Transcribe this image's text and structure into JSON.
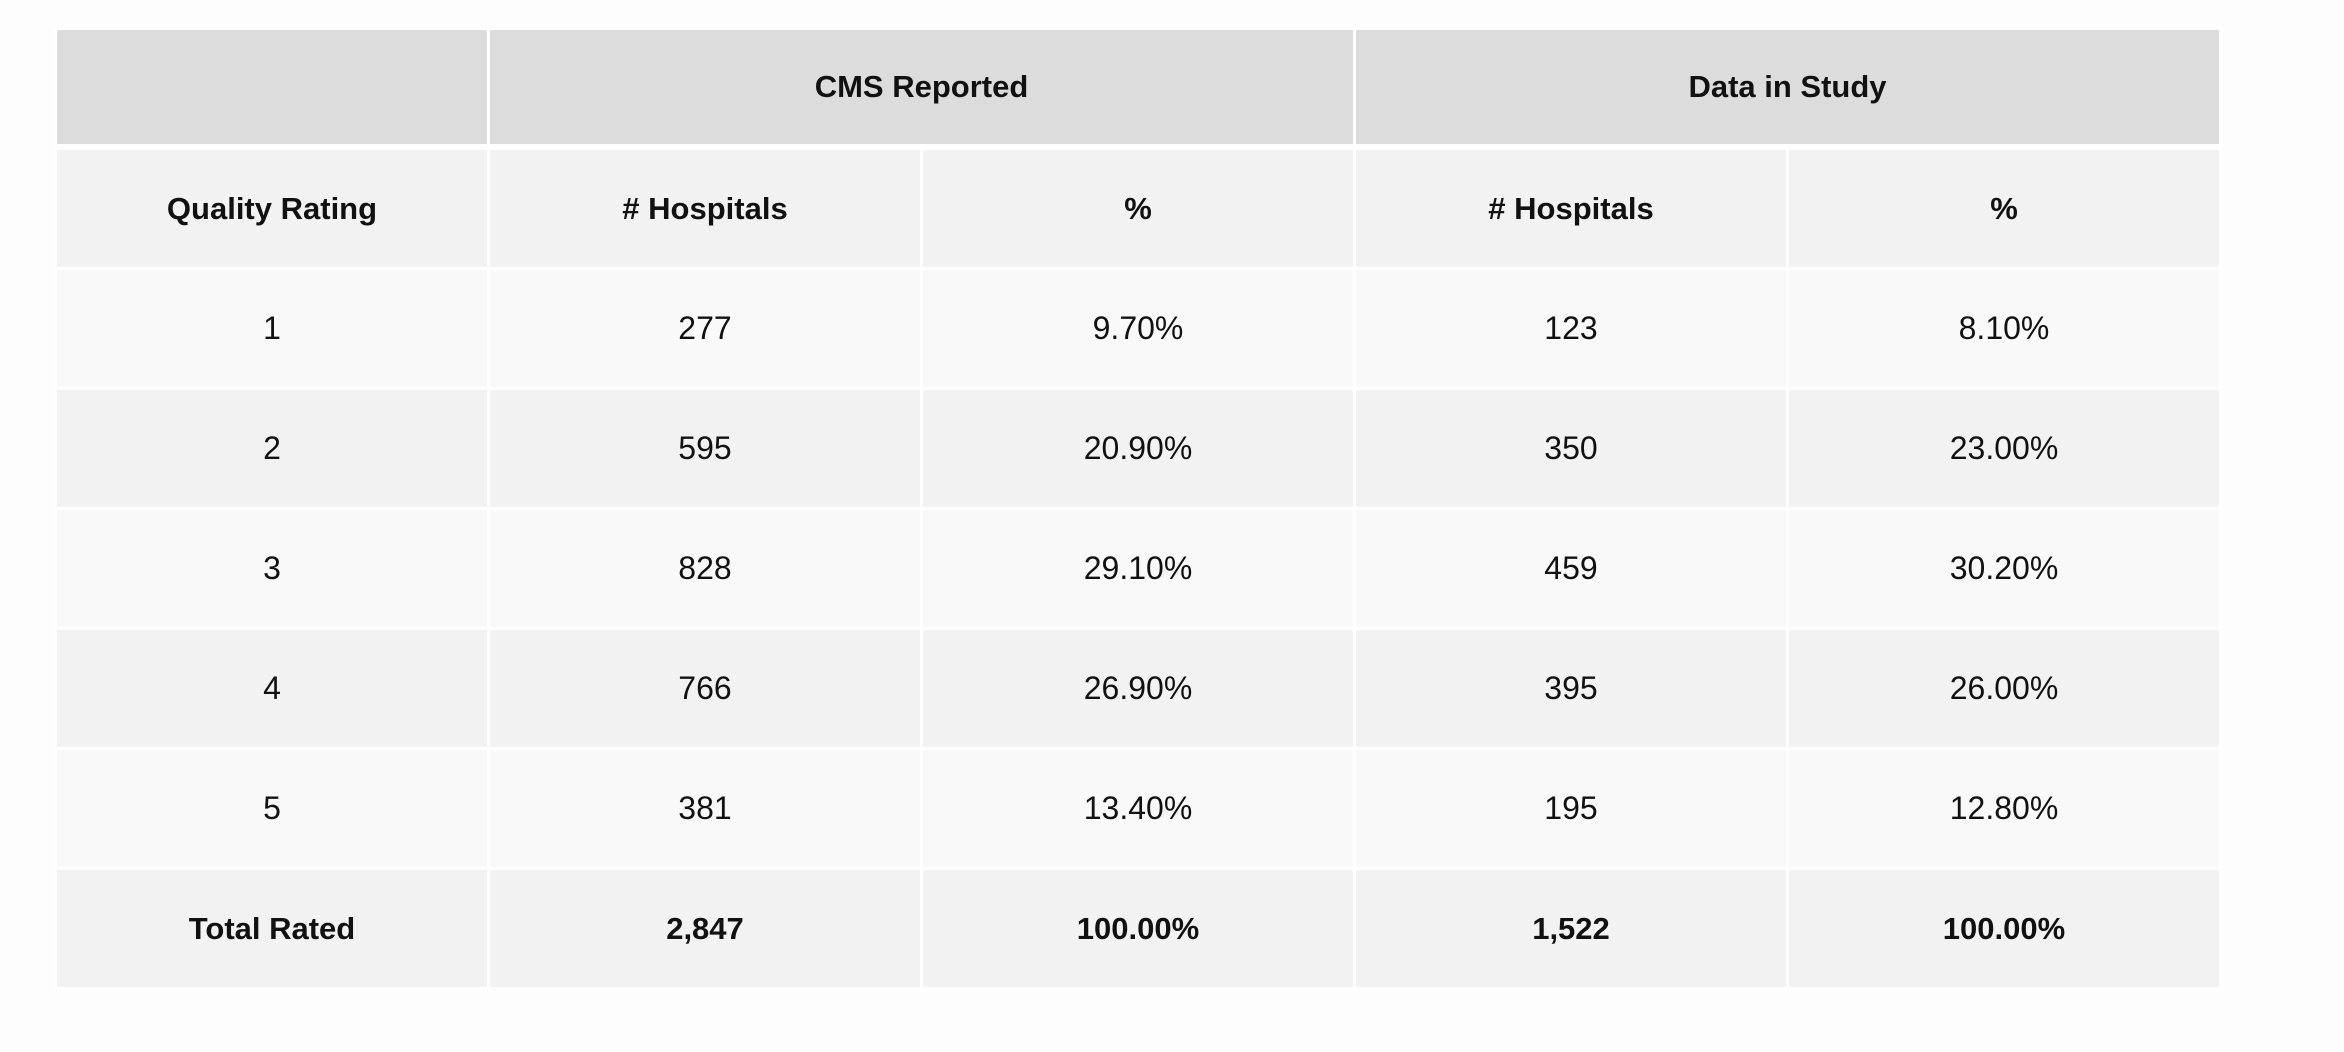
{
  "table": {
    "groups": [
      "CMS Reported",
      "Data in Study"
    ],
    "columns": [
      "Quality Rating",
      "# Hospitals",
      "%",
      "# Hospitals",
      "%"
    ],
    "rows": [
      [
        "1",
        "277",
        "9.70%",
        "123",
        "8.10%"
      ],
      [
        "2",
        "595",
        "20.90%",
        "350",
        "23.00%"
      ],
      [
        "3",
        "828",
        "29.10%",
        "459",
        "30.20%"
      ],
      [
        "4",
        "766",
        "26.90%",
        "395",
        "26.00%"
      ],
      [
        "5",
        "381",
        "13.40%",
        "195",
        "12.80%"
      ]
    ],
    "total": [
      "Total Rated",
      "2,847",
      "100.00%",
      "1,522",
      "100.00%"
    ]
  }
}
